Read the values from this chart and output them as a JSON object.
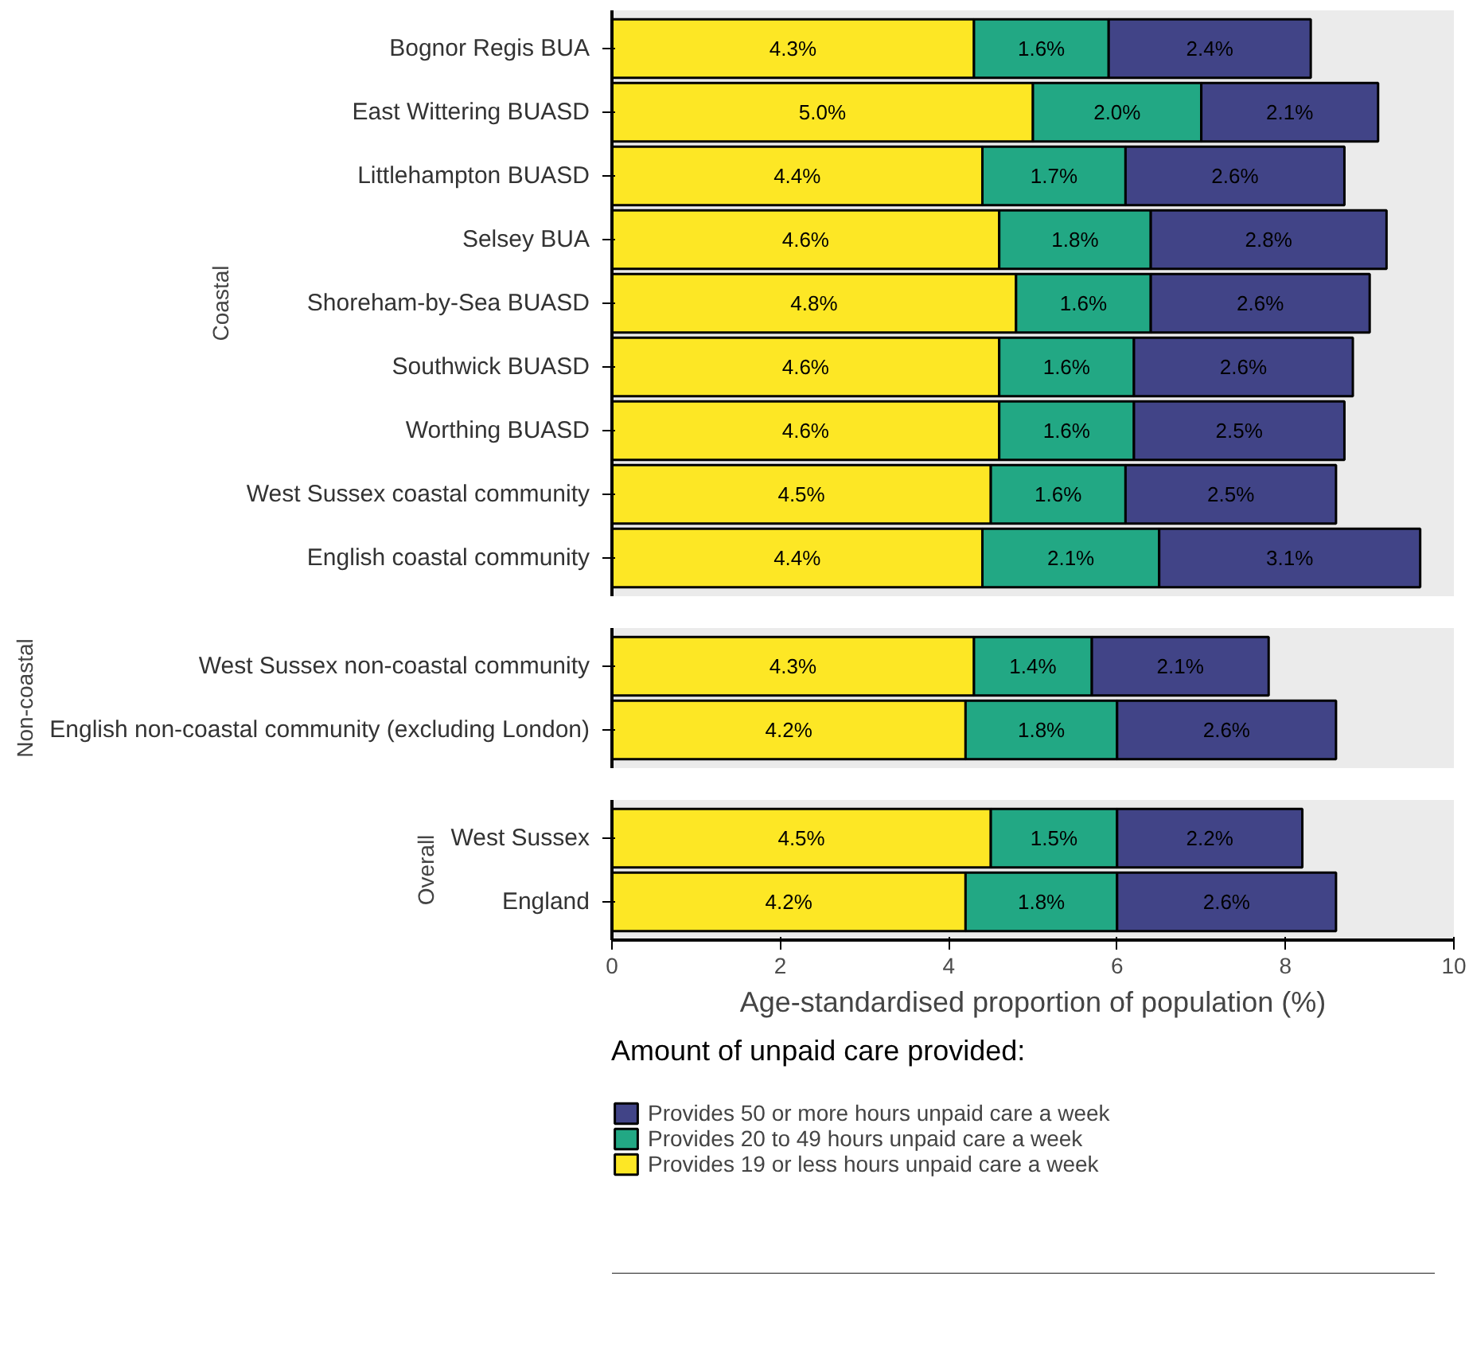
{
  "chart_data": [
    {
      "type": "bar",
      "orientation": "horizontal",
      "stacked": true,
      "title": "Coastal",
      "categories": [
        "Bognor Regis BUA",
        "East Wittering BUASD",
        "Littlehampton BUASD",
        "Selsey BUA",
        "Shoreham-by-Sea BUASD",
        "Southwick BUASD",
        "Worthing BUASD",
        "West Sussex coastal community",
        "English coastal community"
      ],
      "series": [
        {
          "color": "#fde725",
          "values": [
            4.3,
            5.0,
            4.4,
            4.6,
            4.8,
            4.6,
            4.6,
            4.5,
            4.4
          ],
          "value_labels": [
            "4.3%",
            "5.0%",
            "4.4%",
            "4.6%",
            "4.8%",
            "4.6%",
            "4.6%",
            "4.5%",
            "4.4%"
          ]
        },
        {
          "color": "#22a884",
          "values": [
            1.6,
            2.0,
            1.7,
            1.8,
            1.6,
            1.6,
            1.6,
            1.6,
            2.1
          ],
          "value_labels": [
            "1.6%",
            "2.0%",
            "1.7%",
            "1.8%",
            "1.6%",
            "1.6%",
            "1.6%",
            "1.6%",
            "2.1%"
          ]
        },
        {
          "color": "#414487",
          "values": [
            2.4,
            2.1,
            2.6,
            2.8,
            2.6,
            2.6,
            2.5,
            2.5,
            3.1
          ],
          "value_labels": [
            "2.4%",
            "2.1%",
            "2.6%",
            "2.8%",
            "2.6%",
            "2.6%",
            "2.5%",
            "2.5%",
            "3.1%"
          ]
        }
      ],
      "xlim": [
        0,
        10
      ],
      "xticks": [
        0,
        2,
        4,
        6,
        8,
        10
      ],
      "tick_labels": "y",
      "grid": false
    },
    {
      "type": "bar",
      "orientation": "horizontal",
      "stacked": true,
      "title": "Non-coastal",
      "categories": [
        "West Sussex non-coastal community",
        "English non-coastal community (excluding London)"
      ],
      "series": [
        {
          "color": "#fde725",
          "values": [
            4.3,
            4.2
          ],
          "value_labels": [
            "4.3%",
            "4.2%"
          ]
        },
        {
          "color": "#22a884",
          "values": [
            1.4,
            1.8
          ],
          "value_labels": [
            "1.4%",
            "1.8%"
          ]
        },
        {
          "color": "#414487",
          "values": [
            2.1,
            2.6
          ],
          "value_labels": [
            "2.1%",
            "2.6%"
          ]
        }
      ],
      "xlim": [
        0,
        10
      ],
      "xticks": [
        0,
        2,
        4,
        6,
        8,
        10
      ],
      "tick_labels": "y",
      "grid": false
    },
    {
      "type": "bar",
      "orientation": "horizontal",
      "stacked": true,
      "title": "Overall",
      "categories": [
        "West Sussex",
        "England"
      ],
      "xlabel": "Age-standardised proportion of population (%)",
      "legend_title": "Amount of unpaid care provided:",
      "legend": "bottom",
      "series": [
        {
          "name": "Provides 19 or less hours unpaid care a week",
          "color": "#fde725",
          "values": [
            4.5,
            4.2
          ],
          "value_labels": [
            "4.5%",
            "4.2%"
          ]
        },
        {
          "name": "Provides 20 to 49 hours unpaid care a week",
          "color": "#22a884",
          "values": [
            1.5,
            1.8
          ],
          "value_labels": [
            "1.5%",
            "1.8%"
          ]
        },
        {
          "name": "Provides 50 or more hours unpaid care a week",
          "color": "#414487",
          "values": [
            2.2,
            2.6
          ],
          "value_labels": [
            "2.2%",
            "2.6%"
          ]
        }
      ],
      "xlim": [
        0,
        10
      ],
      "xticks": [
        0,
        2,
        4,
        6,
        8,
        10
      ],
      "grid": false
    }
  ]
}
